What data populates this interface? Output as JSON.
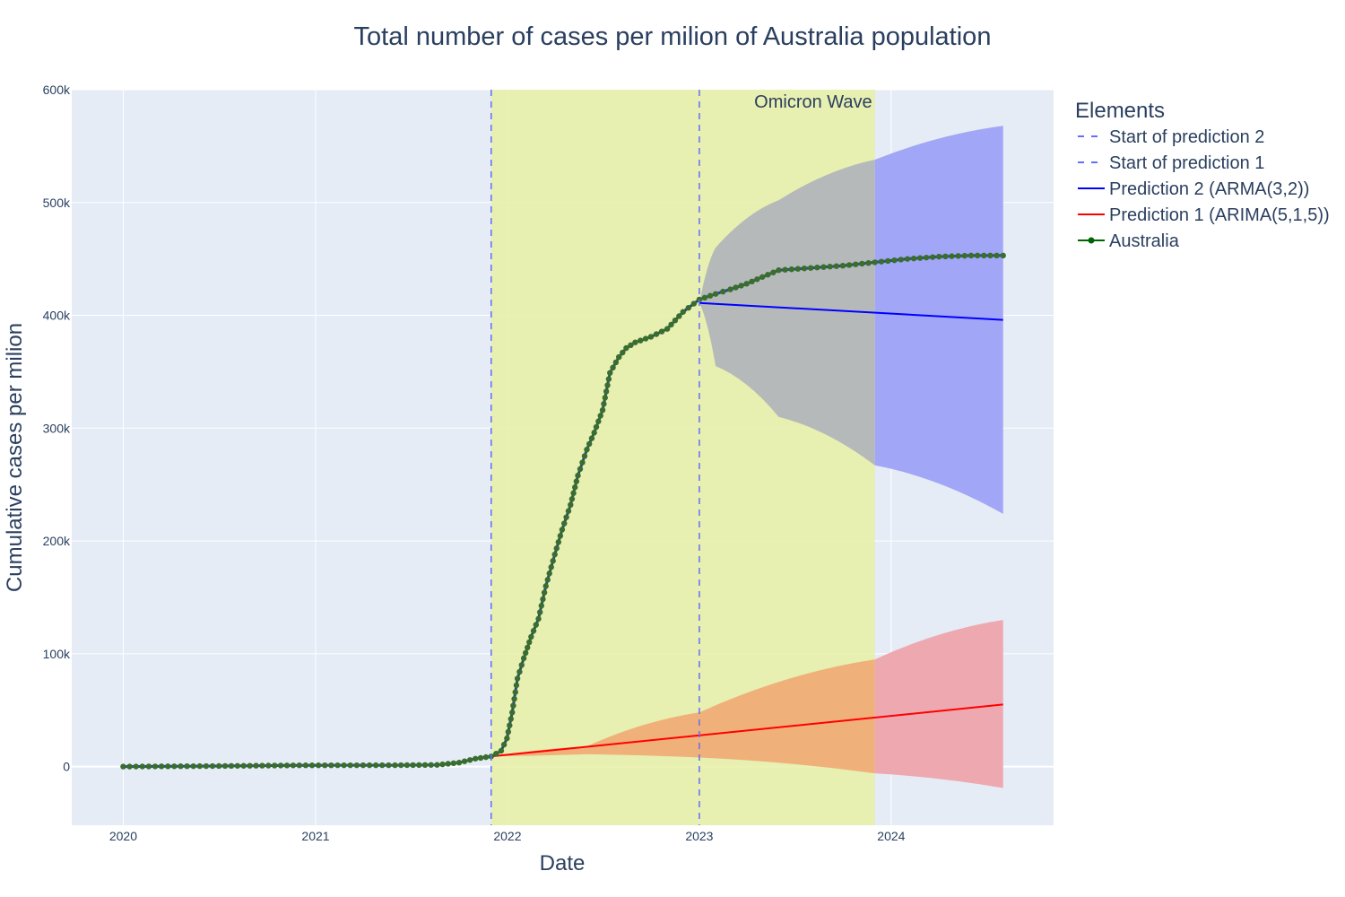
{
  "chart_data": {
    "type": "line",
    "title": "Total number of cases per milion of Australia population",
    "xlabel": "Date",
    "ylabel": "Cumulative cases per milion",
    "xlim": [
      "2019-09-25",
      "2024-11-05"
    ],
    "ylim": [
      -52000,
      600000
    ],
    "x_ticks": [
      "2020",
      "2021",
      "2022",
      "2023",
      "2024"
    ],
    "y_ticks": [
      {
        "value": 0,
        "label": "0"
      },
      {
        "value": 100000,
        "label": "100k"
      },
      {
        "value": 200000,
        "label": "200k"
      },
      {
        "value": 300000,
        "label": "300k"
      },
      {
        "value": 400000,
        "label": "400k"
      },
      {
        "value": 500000,
        "label": "500k"
      },
      {
        "value": 600000,
        "label": "600k"
      }
    ],
    "grid": true,
    "legend": {
      "title": "Elements",
      "placement": "right",
      "items": [
        {
          "label": "Start of prediction 2",
          "style": "dash",
          "color": "#636efa"
        },
        {
          "label": "Start of prediction 1",
          "style": "dash",
          "color": "#636efa"
        },
        {
          "label": "Prediction 2 (ARMA(3,2))",
          "style": "line",
          "color": "#0000ff"
        },
        {
          "label": "Prediction 1 (ARIMA(5,1,5))",
          "style": "line",
          "color": "#ff0000"
        },
        {
          "label": "Australia",
          "style": "line-marker",
          "color": "#006400"
        }
      ]
    },
    "shaded_region": {
      "label": "Omicron Wave",
      "x_start": "2021-12-01",
      "x_end": "2023-12-01",
      "color": "#e8f0a4"
    },
    "vertical_lines": [
      {
        "name": "Start of prediction 1",
        "x": "2021-12-01",
        "color": "#636efa"
      },
      {
        "name": "Start of prediction 2",
        "x": "2023-01-01",
        "color": "#636efa"
      }
    ],
    "series": [
      {
        "name": "Australia",
        "color": "#006400",
        "marker_color": "#3a6e2e",
        "points": [
          [
            "2020-01-01",
            0
          ],
          [
            "2020-07-01",
            500
          ],
          [
            "2020-12-01",
            1100
          ],
          [
            "2021-06-01",
            1200
          ],
          [
            "2021-08-20",
            1500
          ],
          [
            "2021-10-01",
            3500
          ],
          [
            "2021-11-01",
            7000
          ],
          [
            "2021-12-01",
            9000
          ],
          [
            "2021-12-20",
            14000
          ],
          [
            "2021-12-31",
            25000
          ],
          [
            "2022-01-10",
            48000
          ],
          [
            "2022-01-20",
            78000
          ],
          [
            "2022-02-01",
            96000
          ],
          [
            "2022-02-15",
            115000
          ],
          [
            "2022-03-01",
            131000
          ],
          [
            "2022-03-15",
            160000
          ],
          [
            "2022-04-01",
            188000
          ],
          [
            "2022-04-15",
            210000
          ],
          [
            "2022-05-01",
            232000
          ],
          [
            "2022-05-15",
            258000
          ],
          [
            "2022-06-01",
            281000
          ],
          [
            "2022-06-15",
            296000
          ],
          [
            "2022-07-01",
            316000
          ],
          [
            "2022-07-15",
            349000
          ],
          [
            "2022-08-01",
            363000
          ],
          [
            "2022-08-15",
            371000
          ],
          [
            "2022-09-01",
            376000
          ],
          [
            "2022-10-01",
            381000
          ],
          [
            "2022-11-01",
            388000
          ],
          [
            "2022-12-01",
            403000
          ],
          [
            "2023-01-01",
            414000
          ],
          [
            "2023-02-01",
            419000
          ],
          [
            "2023-03-01",
            423000
          ],
          [
            "2023-04-01",
            428000
          ],
          [
            "2023-05-01",
            434000
          ],
          [
            "2023-06-01",
            440000
          ],
          [
            "2023-08-01",
            442000
          ],
          [
            "2023-10-01",
            444000
          ],
          [
            "2023-12-01",
            447000
          ],
          [
            "2024-02-01",
            450000
          ],
          [
            "2024-04-01",
            452000
          ],
          [
            "2024-06-01",
            453000
          ],
          [
            "2024-08-01",
            453000
          ]
        ]
      },
      {
        "name": "Prediction 1 (ARIMA(5,1,5))",
        "color": "#ff0000",
        "points": [
          [
            "2021-12-01",
            9000
          ],
          [
            "2024-08-01",
            55000
          ]
        ],
        "confidence_band": {
          "color_inside_region": "#f0b07a",
          "color_outside_region": "#eea8b0",
          "upper": [
            [
              "2021-12-01",
              9000
            ],
            [
              "2022-06-01",
              18000
            ],
            [
              "2023-01-01",
              48000
            ],
            [
              "2023-12-01",
              95000
            ],
            [
              "2024-08-01",
              130000
            ]
          ],
          "lower": [
            [
              "2021-12-01",
              9000
            ],
            [
              "2022-06-01",
              11000
            ],
            [
              "2023-01-01",
              8000
            ],
            [
              "2023-12-01",
              -6000
            ],
            [
              "2024-08-01",
              -19000
            ]
          ]
        }
      },
      {
        "name": "Prediction 2 (ARMA(3,2))",
        "color": "#0000ff",
        "points": [
          [
            "2023-01-01",
            411000
          ],
          [
            "2024-08-01",
            396000
          ]
        ],
        "confidence_band": {
          "color_inside_region": "#b5b9b9",
          "color_outside_region": "#a2a6f6",
          "upper": [
            [
              "2023-01-01",
              411000
            ],
            [
              "2023-02-01",
              460000
            ],
            [
              "2023-06-01",
              502000
            ],
            [
              "2023-12-01",
              538000
            ],
            [
              "2024-08-01",
              568000
            ]
          ],
          "lower": [
            [
              "2023-01-01",
              411000
            ],
            [
              "2023-02-01",
              355000
            ],
            [
              "2023-06-01",
              310000
            ],
            [
              "2023-12-01",
              267000
            ],
            [
              "2024-08-01",
              224000
            ]
          ]
        }
      }
    ]
  }
}
